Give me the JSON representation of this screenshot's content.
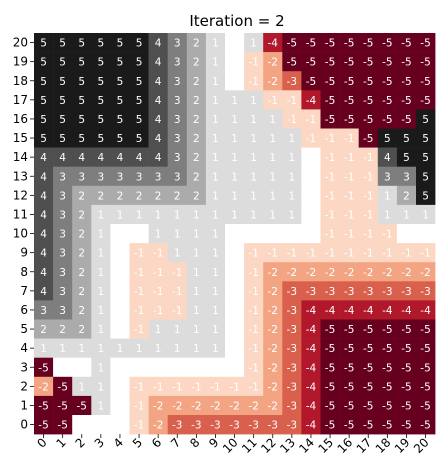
{
  "chart_data": {
    "type": "heatmap",
    "title": "Iteration = 2",
    "x_ticks": [
      "0",
      "1",
      "2",
      "3",
      "4",
      "5",
      "6",
      "7",
      "8",
      "9",
      "10",
      "11",
      "12",
      "13",
      "14",
      "15",
      "16",
      "17",
      "18",
      "19",
      "20"
    ],
    "y_ticks": [
      "20",
      "19",
      "18",
      "17",
      "16",
      "15",
      "14",
      "13",
      "12",
      "11",
      "10",
      "9",
      "8",
      "7",
      "6",
      "5",
      "4",
      "3",
      "2",
      "1",
      "0"
    ],
    "value_range": [
      -5,
      5
    ],
    "colorscale": {
      "5": "#1a1a1a",
      "4": "#4f4f4f",
      "3": "#7e7e7e",
      "2": "#ababab",
      "1": "#dcdcdc",
      "0": "#ffffff",
      "-1": "#fbd7c4",
      "-2": "#f3a583",
      "-3": "#d8604d",
      "-4": "#b1182b",
      "-5": "#67001f"
    },
    "rows": [
      [
        5,
        5,
        5,
        5,
        5,
        5,
        4,
        3,
        2,
        1,
        0,
        1,
        -4,
        -5,
        -5,
        -5,
        -5,
        -5,
        -5,
        -5,
        -5
      ],
      [
        5,
        5,
        5,
        5,
        5,
        5,
        4,
        3,
        2,
        1,
        0,
        -1,
        -2,
        -5,
        -5,
        -5,
        -5,
        -5,
        -5,
        -5,
        -5
      ],
      [
        5,
        5,
        5,
        5,
        5,
        5,
        4,
        3,
        2,
        1,
        0,
        -1,
        -2,
        -3,
        -5,
        -5,
        -5,
        -5,
        -5,
        -5,
        -5
      ],
      [
        5,
        5,
        5,
        5,
        5,
        5,
        4,
        3,
        2,
        1,
        1,
        1,
        -1,
        -1,
        -4,
        -5,
        -5,
        -5,
        -5,
        -5,
        -5
      ],
      [
        5,
        5,
        5,
        5,
        5,
        5,
        4,
        3,
        2,
        1,
        1,
        1,
        1,
        -1,
        -1,
        -5,
        -5,
        -5,
        -5,
        -5,
        5
      ],
      [
        5,
        5,
        5,
        5,
        5,
        5,
        4,
        3,
        2,
        1,
        1,
        1,
        1,
        1,
        -1,
        -1,
        -1,
        -5,
        5,
        5,
        5
      ],
      [
        4,
        4,
        4,
        4,
        4,
        4,
        4,
        3,
        2,
        1,
        1,
        1,
        1,
        1,
        0,
        -1,
        -1,
        -1,
        4,
        5,
        5
      ],
      [
        4,
        3,
        3,
        3,
        3,
        3,
        3,
        3,
        2,
        1,
        1,
        1,
        1,
        1,
        0,
        -1,
        -1,
        -1,
        3,
        3,
        5
      ],
      [
        4,
        3,
        2,
        2,
        2,
        2,
        2,
        2,
        2,
        1,
        1,
        1,
        1,
        1,
        0,
        -1,
        -1,
        -1,
        1,
        2,
        5
      ],
      [
        4,
        3,
        2,
        1,
        1,
        1,
        1,
        1,
        1,
        1,
        1,
        1,
        1,
        1,
        0,
        -1,
        -1,
        -1,
        1,
        1,
        1
      ],
      [
        4,
        3,
        2,
        1,
        0,
        0,
        1,
        1,
        1,
        1,
        0,
        0,
        0,
        0,
        0,
        -1,
        -1,
        -1,
        -1,
        0,
        0
      ],
      [
        4,
        3,
        2,
        1,
        0,
        -1,
        -1,
        1,
        1,
        1,
        0,
        -1,
        -1,
        -1,
        -1,
        -1,
        -1,
        -1,
        -1,
        -1,
        -1
      ],
      [
        4,
        3,
        2,
        1,
        0,
        -1,
        -1,
        -1,
        1,
        1,
        0,
        -1,
        -2,
        -2,
        -2,
        -2,
        -2,
        -2,
        -2,
        -2,
        -2
      ],
      [
        4,
        3,
        2,
        1,
        0,
        -1,
        -1,
        -1,
        1,
        1,
        0,
        -1,
        -2,
        -3,
        -3,
        -3,
        -3,
        -3,
        -3,
        -3,
        -3
      ],
      [
        3,
        3,
        2,
        1,
        0,
        -1,
        -1,
        -1,
        1,
        1,
        0,
        -1,
        -2,
        -3,
        -4,
        -4,
        -4,
        -4,
        -4,
        -4,
        -4
      ],
      [
        2,
        2,
        2,
        1,
        0,
        -1,
        1,
        1,
        1,
        1,
        0,
        -1,
        -2,
        -3,
        -4,
        -5,
        -5,
        -5,
        -5,
        -5,
        -5
      ],
      [
        1,
        1,
        1,
        1,
        1,
        1,
        1,
        1,
        1,
        1,
        0,
        -1,
        -2,
        -3,
        -4,
        -5,
        -5,
        -5,
        -5,
        -5,
        -5
      ],
      [
        -5,
        0,
        0,
        1,
        0,
        0,
        0,
        0,
        0,
        0,
        0,
        -1,
        -2,
        -3,
        -4,
        -5,
        -5,
        -5,
        -5,
        -5,
        -5
      ],
      [
        -2,
        -5,
        1,
        1,
        0,
        -1,
        -1,
        -1,
        -1,
        -1,
        -1,
        -1,
        -2,
        -3,
        -4,
        -5,
        -5,
        -5,
        -5,
        -5,
        -5
      ],
      [
        -5,
        -5,
        -5,
        1,
        0,
        -1,
        -2,
        -2,
        -2,
        -2,
        -2,
        -2,
        -2,
        -3,
        -4,
        -5,
        -5,
        -5,
        -5,
        -5,
        -5
      ],
      [
        -5,
        -5,
        0,
        0,
        0,
        -1,
        -2,
        -3,
        -3,
        -3,
        -3,
        -3,
        -3,
        -3,
        -4,
        -5,
        -5,
        -5,
        -5,
        -5,
        -5
      ]
    ]
  }
}
